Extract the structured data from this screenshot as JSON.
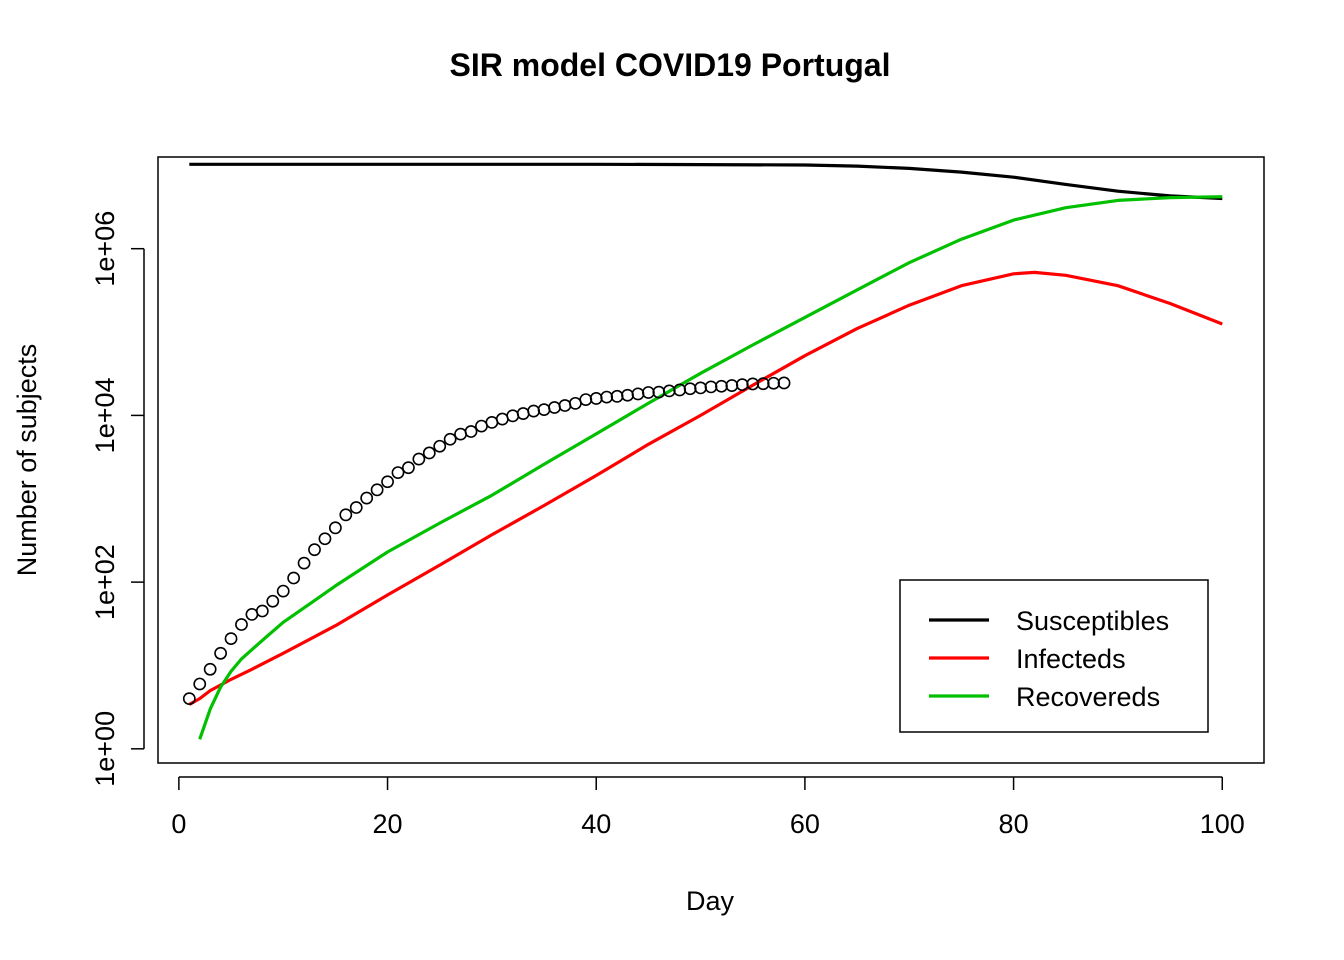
{
  "chart_data": {
    "type": "line",
    "title": "SIR model COVID19 Portugal",
    "xlabel": "Day",
    "ylabel": "Number of subjects",
    "xlim": [
      -2,
      104
    ],
    "ylim_log10": [
      -0.17,
      7.1
    ],
    "y_scale": "log",
    "x_ticks": [
      0,
      20,
      40,
      60,
      80,
      100
    ],
    "y_ticks": [
      {
        "value": 1,
        "label": "1e+00"
      },
      {
        "value": 100,
        "label": "1e+02"
      },
      {
        "value": 10000,
        "label": "1e+04"
      },
      {
        "value": 1000000,
        "label": "1e+06"
      }
    ],
    "grid": false,
    "legend": {
      "position": "bottom-right",
      "entries": [
        {
          "label": "Susceptibles",
          "color": "#000000"
        },
        {
          "label": "Infecteds",
          "color": "#ff0000"
        },
        {
          "label": "Recovereds",
          "color": "#00c000"
        }
      ]
    },
    "series": [
      {
        "name": "Susceptibles",
        "color": "#000000",
        "points": [
          [
            1,
            10280000
          ],
          [
            20,
            10280000
          ],
          [
            40,
            10280000
          ],
          [
            50,
            10200000
          ],
          [
            60,
            10100000
          ],
          [
            65,
            9800000
          ],
          [
            70,
            9200000
          ],
          [
            75,
            8300000
          ],
          [
            80,
            7200000
          ],
          [
            85,
            5900000
          ],
          [
            90,
            4900000
          ],
          [
            95,
            4300000
          ],
          [
            100,
            4000000
          ]
        ]
      },
      {
        "name": "Infecteds",
        "color": "#ff0000",
        "points": [
          [
            1,
            3.4
          ],
          [
            2,
            4
          ],
          [
            3,
            5
          ],
          [
            5,
            6.8
          ],
          [
            7,
            9
          ],
          [
            10,
            14
          ],
          [
            15,
            30
          ],
          [
            20,
            70
          ],
          [
            25,
            160
          ],
          [
            30,
            370
          ],
          [
            35,
            830
          ],
          [
            40,
            1900
          ],
          [
            45,
            4500
          ],
          [
            50,
            10000
          ],
          [
            55,
            23000
          ],
          [
            60,
            52000
          ],
          [
            65,
            110000
          ],
          [
            70,
            210000
          ],
          [
            75,
            360000
          ],
          [
            80,
            500000
          ],
          [
            82,
            520000
          ],
          [
            85,
            480000
          ],
          [
            90,
            360000
          ],
          [
            95,
            220000
          ],
          [
            100,
            125000
          ]
        ]
      },
      {
        "name": "Recovereds",
        "color": "#00c000",
        "points": [
          [
            2,
            1.3
          ],
          [
            3,
            3
          ],
          [
            4,
            5.5
          ],
          [
            5,
            8.5
          ],
          [
            6,
            12
          ],
          [
            8,
            20
          ],
          [
            10,
            33
          ],
          [
            13,
            60
          ],
          [
            15,
            90
          ],
          [
            20,
            230
          ],
          [
            25,
            510
          ],
          [
            30,
            1100
          ],
          [
            35,
            2600
          ],
          [
            40,
            6000
          ],
          [
            45,
            14000
          ],
          [
            50,
            32000
          ],
          [
            55,
            70000
          ],
          [
            60,
            150000
          ],
          [
            65,
            320000
          ],
          [
            70,
            680000
          ],
          [
            75,
            1300000
          ],
          [
            80,
            2200000
          ],
          [
            85,
            3100000
          ],
          [
            90,
            3800000
          ],
          [
            95,
            4100000
          ],
          [
            100,
            4200000
          ]
        ]
      },
      {
        "name": "",
        "type": "scatter",
        "color": "#000000",
        "points": [
          [
            1,
            4
          ],
          [
            2,
            6
          ],
          [
            3,
            9
          ],
          [
            4,
            14
          ],
          [
            5,
            21
          ],
          [
            6,
            31
          ],
          [
            7,
            41
          ],
          [
            8,
            45
          ],
          [
            9,
            59
          ],
          [
            10,
            78
          ],
          [
            11,
            112
          ],
          [
            12,
            169
          ],
          [
            13,
            245
          ],
          [
            14,
            331
          ],
          [
            15,
            448
          ],
          [
            16,
            642
          ],
          [
            17,
            785
          ],
          [
            18,
            1020
          ],
          [
            19,
            1280
          ],
          [
            20,
            1600
          ],
          [
            21,
            2060
          ],
          [
            22,
            2360
          ],
          [
            23,
            2995
          ],
          [
            24,
            3544
          ],
          [
            25,
            4268
          ],
          [
            26,
            5170
          ],
          [
            27,
            5962
          ],
          [
            28,
            6408
          ],
          [
            29,
            7443
          ],
          [
            30,
            8251
          ],
          [
            31,
            9034
          ],
          [
            32,
            9886
          ],
          [
            33,
            10524
          ],
          [
            34,
            11278
          ],
          [
            35,
            11730
          ],
          [
            36,
            12442
          ],
          [
            37,
            13141
          ],
          [
            38,
            13956
          ],
          [
            39,
            15472
          ],
          [
            40,
            15987
          ],
          [
            41,
            16585
          ],
          [
            42,
            16934
          ],
          [
            43,
            17448
          ],
          [
            44,
            18091
          ],
          [
            45,
            18841
          ],
          [
            46,
            19022
          ],
          [
            47,
            19685
          ],
          [
            48,
            20206
          ],
          [
            49,
            20863
          ],
          [
            50,
            21379
          ],
          [
            51,
            21982
          ],
          [
            52,
            22353
          ],
          [
            53,
            22797
          ],
          [
            54,
            23392
          ],
          [
            55,
            23864
          ],
          [
            56,
            24027
          ],
          [
            57,
            24322
          ],
          [
            58,
            24505
          ]
        ]
      }
    ]
  }
}
